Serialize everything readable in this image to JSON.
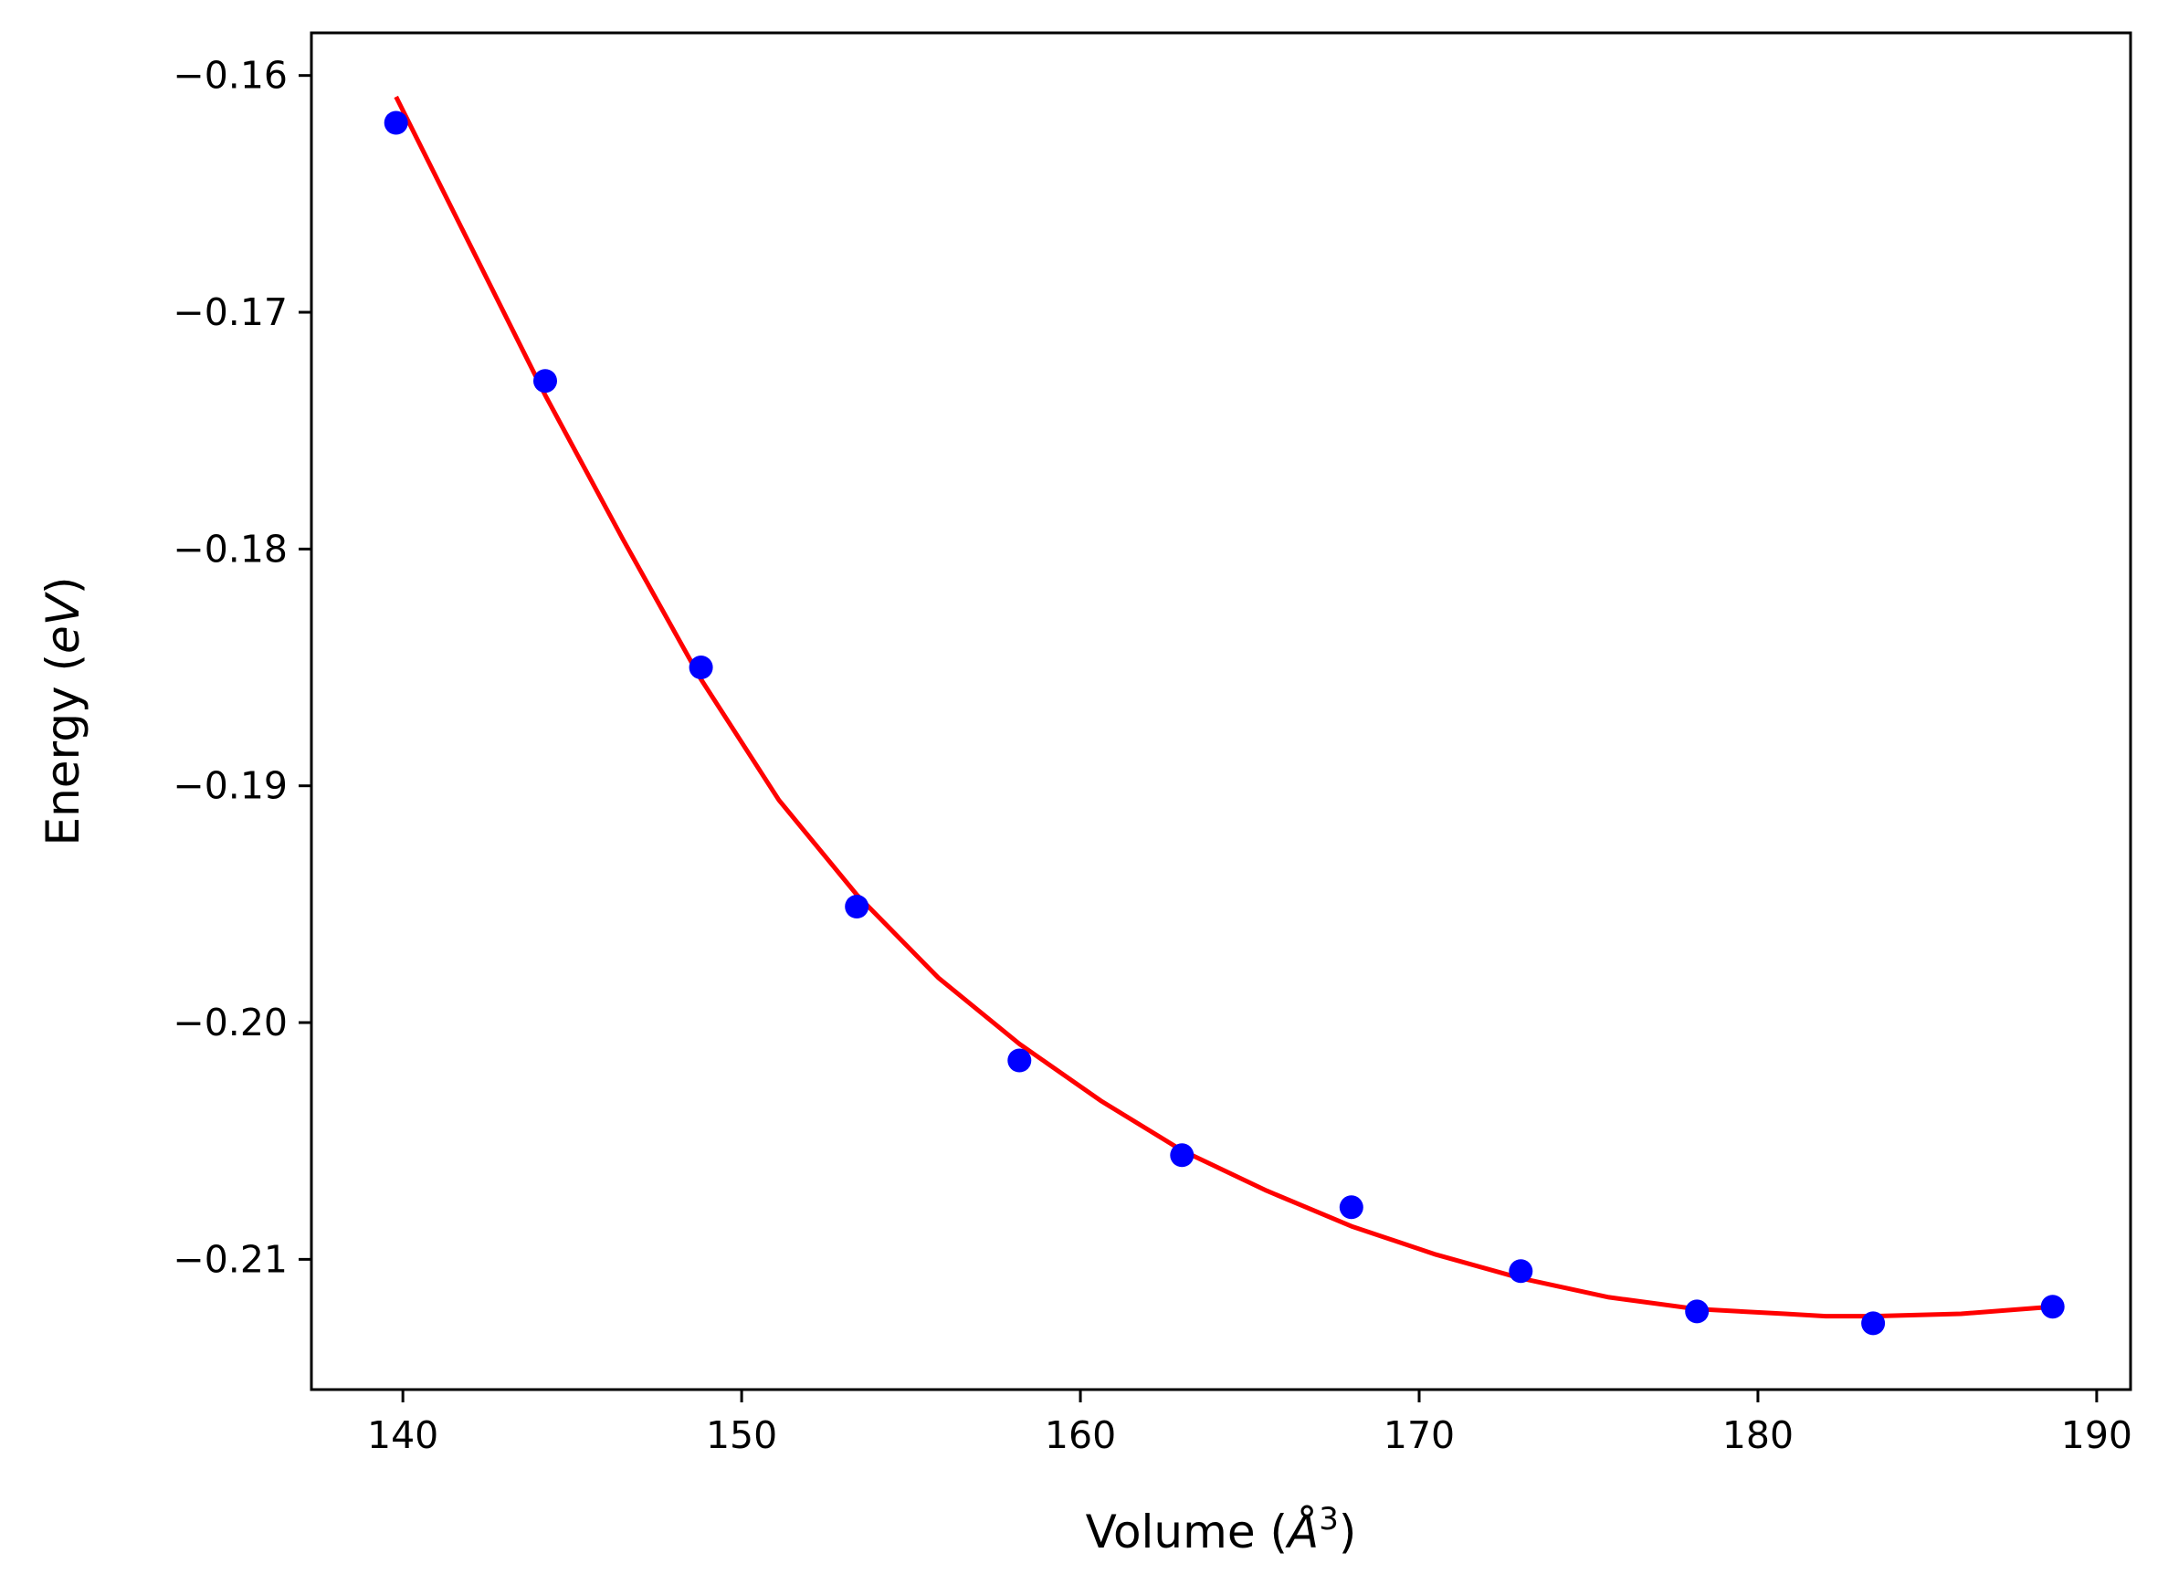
{
  "chart_data": {
    "type": "scatter",
    "title": "",
    "xlabel": "Volume (Å³)",
    "xlabel_parts": {
      "prefix": "Volume (",
      "unit": "Å",
      "exponent": "3",
      "suffix": ")"
    },
    "ylabel": "Energy (eV)",
    "ylabel_parts": {
      "prefix": "Energy (",
      "unit": "eV",
      "suffix": ")"
    },
    "xlim": [
      137.3,
      191.0
    ],
    "ylim": [
      -0.2155,
      -0.1582
    ],
    "xticks": [
      140,
      150,
      160,
      170,
      180,
      190
    ],
    "xtick_labels": [
      "140",
      "150",
      "160",
      "170",
      "180",
      "190"
    ],
    "yticks": [
      -0.16,
      -0.17,
      -0.18,
      -0.19,
      -0.2,
      -0.21
    ],
    "ytick_labels": [
      "−0.16",
      "−0.17",
      "−0.18",
      "−0.19",
      "−0.20",
      "−0.21"
    ],
    "grid": false,
    "legend": "none",
    "series": [
      {
        "kind": "scatter",
        "color": "#0000ff",
        "x": [
          139.8,
          144.2,
          148.8,
          153.4,
          158.2,
          163.0,
          168.0,
          173.0,
          178.2,
          183.4,
          188.7
        ],
        "y": [
          -0.162,
          -0.1729,
          -0.185,
          -0.1951,
          -0.2016,
          -0.2056,
          -0.2078,
          -0.2105,
          -0.2122,
          -0.2127,
          -0.212
        ]
      },
      {
        "kind": "line",
        "color": "#ff0000",
        "x": [
          139.8,
          142.0,
          144.2,
          146.5,
          148.8,
          151.1,
          153.4,
          155.8,
          158.2,
          160.6,
          163.0,
          165.5,
          168.0,
          170.5,
          173.0,
          175.6,
          178.2,
          180.8,
          182.0,
          183.4,
          186.0,
          188.7
        ],
        "y": [
          -0.1609,
          -0.1672,
          -0.1735,
          -0.1796,
          -0.1855,
          -0.1906,
          -0.1946,
          -0.1981,
          -0.2009,
          -0.2033,
          -0.2054,
          -0.2071,
          -0.2086,
          -0.2098,
          -0.2108,
          -0.2116,
          -0.2121,
          -0.2123,
          -0.2124,
          -0.2124,
          -0.2123,
          -0.212
        ]
      }
    ]
  }
}
